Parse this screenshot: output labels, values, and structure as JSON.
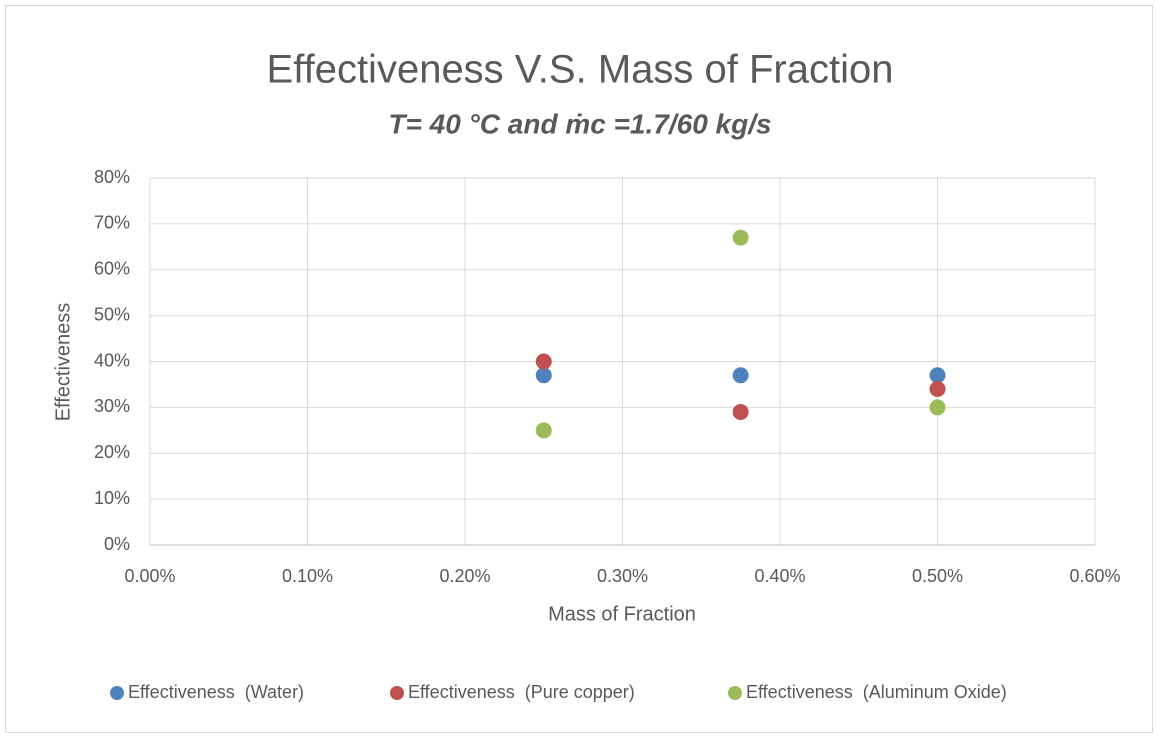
{
  "chart_data": {
    "type": "scatter",
    "title": "Effectiveness V.S. Mass of Fraction",
    "subtitle": "T= 40 °C and ṁc =1.7/60 kg/s",
    "x_label": "Mass of Fraction",
    "y_label": "Effectiveness",
    "xlim": [
      0,
      0.6
    ],
    "xticks": [
      {
        "value": 0,
        "label": "0.00%"
      },
      {
        "value": 0.1,
        "label": "0.10%"
      },
      {
        "value": 0.2,
        "label": "0.20%"
      },
      {
        "value": 0.3,
        "label": "0.30%"
      },
      {
        "value": 0.4,
        "label": "0.40%"
      },
      {
        "value": 0.5,
        "label": "0.50%"
      },
      {
        "value": 0.6,
        "label": "0.60%"
      }
    ],
    "ylim": [
      0,
      80
    ],
    "yticks": [
      {
        "value": 0,
        "label": "0%"
      },
      {
        "value": 10,
        "label": "10%"
      },
      {
        "value": 20,
        "label": "20%"
      },
      {
        "value": 30,
        "label": "30%"
      },
      {
        "value": 40,
        "label": "40%"
      },
      {
        "value": 50,
        "label": "50%"
      },
      {
        "value": 60,
        "label": "60%"
      },
      {
        "value": 70,
        "label": "70%"
      },
      {
        "value": 80,
        "label": "80%"
      }
    ],
    "grid": true,
    "legend": "bottom",
    "series": [
      {
        "name": "Effectiveness  (Water)",
        "color": "#4f81bd",
        "x": [
          0.25,
          0.375,
          0.5
        ],
        "values": [
          37,
          37,
          37
        ]
      },
      {
        "name": "Effectiveness  (Pure copper)",
        "color": "#c0504d",
        "x": [
          0.25,
          0.375,
          0.5
        ],
        "values": [
          40,
          29,
          34
        ]
      },
      {
        "name": "Effectiveness  (Aluminum Oxide)",
        "color": "#9bbb59",
        "x": [
          0.25,
          0.375,
          0.5
        ],
        "values": [
          25,
          67,
          30
        ]
      }
    ]
  }
}
